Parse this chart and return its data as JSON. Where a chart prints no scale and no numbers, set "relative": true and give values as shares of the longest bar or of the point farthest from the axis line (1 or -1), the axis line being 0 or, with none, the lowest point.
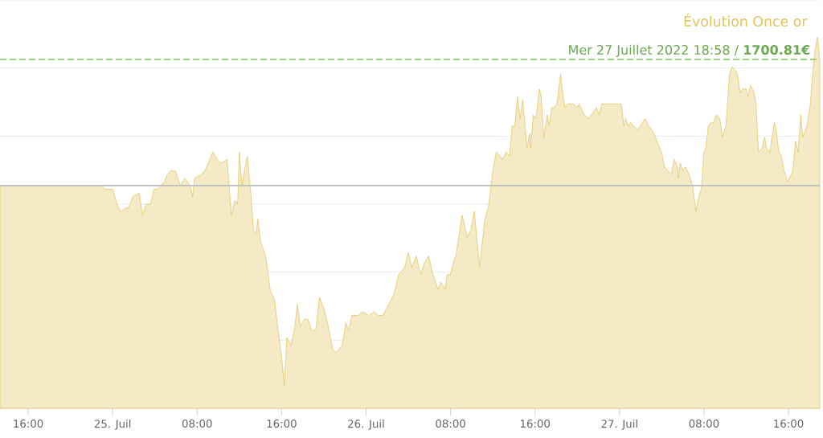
{
  "chart_data": {
    "type": "area",
    "title": "Évolution Once or",
    "relative": true,
    "grid": "y",
    "color": "#e2c35c",
    "xlim": [
      "2022-07-24T13:20",
      "2022-07-27T18:58"
    ],
    "xticks": [
      {
        "value": "2022-07-24T16:00",
        "label": "16:00"
      },
      {
        "value": "2022-07-25T00:00",
        "label": "25. Juil"
      },
      {
        "value": "2022-07-25T08:00",
        "label": "08:00"
      },
      {
        "value": "2022-07-25T16:00",
        "label": "16:00"
      },
      {
        "value": "2022-07-26T00:00",
        "label": "26. Juil"
      },
      {
        "value": "2022-07-26T08:00",
        "label": "08:00"
      },
      {
        "value": "2022-07-26T16:00",
        "label": "16:00"
      },
      {
        "value": "2022-07-27T00:00",
        "label": "27. Juil"
      },
      {
        "value": "2022-07-27T08:00",
        "label": "08:00"
      },
      {
        "value": "2022-07-27T16:00",
        "label": "16:00"
      }
    ],
    "annotations": [
      "Mer 27 Juillet 2022 18:58 / **1700.81€**"
    ],
    "ref_lines": [
      {
        "axis": "y",
        "value": 0.94,
        "color": "#8fd16f",
        "line_style": "dashed"
      },
      {
        "axis": "y",
        "value": 0.6,
        "color": "#bdbdbd"
      }
    ],
    "x": [
      "2022-07-24T13:20",
      "2022-07-24T23:00",
      "2022-07-24T23:15",
      "2022-07-25T00:00",
      "2022-07-25T00:25",
      "2022-07-25T00:45",
      "2022-07-25T01:15",
      "2022-07-25T01:30",
      "2022-07-25T01:55",
      "2022-07-25T02:30",
      "2022-07-25T02:50",
      "2022-07-25T03:10",
      "2022-07-25T03:35",
      "2022-07-25T03:55",
      "2022-07-25T04:10",
      "2022-07-25T04:30",
      "2022-07-25T04:55",
      "2022-07-25T05:10",
      "2022-07-25T05:30",
      "2022-07-25T05:55",
      "2022-07-25T06:25",
      "2022-07-25T06:50",
      "2022-07-25T07:20",
      "2022-07-25T07:35",
      "2022-07-25T07:45",
      "2022-07-25T08:25",
      "2022-07-25T08:45",
      "2022-07-25T09:30",
      "2022-07-25T09:55",
      "2022-07-25T10:15",
      "2022-07-25T10:50",
      "2022-07-25T11:15",
      "2022-07-25T11:35",
      "2022-07-25T11:50",
      "2022-07-25T12:00",
      "2022-07-25T12:15",
      "2022-07-25T12:45",
      "2022-07-25T13:05",
      "2022-07-25T13:20",
      "2022-07-25T13:35",
      "2022-07-25T13:45",
      "2022-07-25T14:00",
      "2022-07-25T14:30",
      "2022-07-25T14:55",
      "2022-07-25T15:20",
      "2022-07-25T15:40",
      "2022-07-25T16:00",
      "2022-07-25T16:15",
      "2022-07-25T16:30",
      "2022-07-25T16:55",
      "2022-07-25T17:15",
      "2022-07-25T17:30",
      "2022-07-25T17:45",
      "2022-07-25T18:10",
      "2022-07-25T18:30",
      "2022-07-25T18:50",
      "2022-07-25T19:15",
      "2022-07-25T19:35",
      "2022-07-25T20:00",
      "2022-07-25T20:25",
      "2022-07-25T20:50",
      "2022-07-25T21:10",
      "2022-07-25T21:45",
      "2022-07-25T22:05",
      "2022-07-25T22:20",
      "2022-07-25T22:40",
      "2022-07-25T23:15",
      "2022-07-25T23:40",
      "2022-07-26T00:15",
      "2022-07-26T00:45",
      "2022-07-26T01:10",
      "2022-07-26T01:35",
      "2022-07-26T02:20",
      "2022-07-26T02:40",
      "2022-07-26T03:05",
      "2022-07-26T03:40",
      "2022-07-26T04:00",
      "2022-07-26T04:20",
      "2022-07-26T04:45",
      "2022-07-26T05:10",
      "2022-07-26T05:30",
      "2022-07-26T05:55",
      "2022-07-26T06:15",
      "2022-07-26T06:35",
      "2022-07-26T06:50",
      "2022-07-26T07:05",
      "2022-07-26T07:30",
      "2022-07-26T07:40",
      "2022-07-26T08:00",
      "2022-07-26T08:20",
      "2022-07-26T08:30",
      "2022-07-26T09:05",
      "2022-07-26T09:20",
      "2022-07-26T09:35",
      "2022-07-26T09:55",
      "2022-07-26T10:15",
      "2022-07-26T10:45",
      "2022-07-26T11:15",
      "2022-07-26T11:35",
      "2022-07-26T12:00",
      "2022-07-26T12:20",
      "2022-07-26T12:40",
      "2022-07-26T12:55",
      "2022-07-26T13:15",
      "2022-07-26T13:35",
      "2022-07-26T13:50",
      "2022-07-26T14:05",
      "2022-07-26T14:20",
      "2022-07-26T14:35",
      "2022-07-26T14:50",
      "2022-07-26T15:15",
      "2022-07-26T15:30",
      "2022-07-26T15:35",
      "2022-07-26T15:50",
      "2022-07-26T16:05",
      "2022-07-26T16:25",
      "2022-07-26T16:35",
      "2022-07-26T16:50",
      "2022-07-26T17:10",
      "2022-07-26T17:20",
      "2022-07-26T17:35",
      "2022-07-26T17:50",
      "2022-07-26T18:05",
      "2022-07-26T18:25",
      "2022-07-26T18:40",
      "2022-07-26T18:50",
      "2022-07-26T19:05",
      "2022-07-26T19:20",
      "2022-07-26T19:40",
      "2022-07-26T20:00",
      "2022-07-26T20:10",
      "2022-07-26T20:40",
      "2022-07-26T21:05",
      "2022-07-26T21:35",
      "2022-07-26T21:50",
      "2022-07-26T22:05",
      "2022-07-26T22:20",
      "2022-07-26T22:40",
      "2022-07-26T23:00",
      "2022-07-27T00:10",
      "2022-07-27T00:25",
      "2022-07-27T00:35",
      "2022-07-27T00:50",
      "2022-07-27T01:05",
      "2022-07-27T01:20",
      "2022-07-27T01:45",
      "2022-07-27T02:10",
      "2022-07-27T02:25",
      "2022-07-27T02:45",
      "2022-07-27T03:05",
      "2022-07-27T03:25",
      "2022-07-27T03:40",
      "2022-07-27T04:00",
      "2022-07-27T04:15",
      "2022-07-27T04:35",
      "2022-07-27T04:55",
      "2022-07-27T05:10",
      "2022-07-27T05:30",
      "2022-07-27T05:35",
      "2022-07-27T05:45",
      "2022-07-27T06:00",
      "2022-07-27T06:15",
      "2022-07-27T06:35",
      "2022-07-27T06:55",
      "2022-07-27T07:15",
      "2022-07-27T07:30",
      "2022-07-27T07:45",
      "2022-07-27T08:00",
      "2022-07-27T08:10",
      "2022-07-27T08:25",
      "2022-07-27T08:40",
      "2022-07-27T08:55",
      "2022-07-27T09:10",
      "2022-07-27T09:30",
      "2022-07-27T09:45",
      "2022-07-27T10:05",
      "2022-07-27T10:25",
      "2022-07-27T10:40",
      "2022-07-27T11:00",
      "2022-07-27T11:10",
      "2022-07-27T11:25",
      "2022-07-27T11:40",
      "2022-07-27T12:00",
      "2022-07-27T12:10",
      "2022-07-27T12:25",
      "2022-07-27T12:45",
      "2022-07-27T12:55",
      "2022-07-27T13:10",
      "2022-07-27T13:30",
      "2022-07-27T13:45",
      "2022-07-27T13:55",
      "2022-07-27T14:15",
      "2022-07-27T14:30",
      "2022-07-27T14:40",
      "2022-07-27T14:50",
      "2022-07-27T15:05",
      "2022-07-27T15:20",
      "2022-07-27T15:35",
      "2022-07-27T15:55",
      "2022-07-27T16:15",
      "2022-07-27T16:25",
      "2022-07-27T16:40",
      "2022-07-27T16:55",
      "2022-07-27T17:10",
      "2022-07-27T17:20",
      "2022-07-27T17:45",
      "2022-07-27T18:05",
      "2022-07-27T18:15",
      "2022-07-27T18:30",
      "2022-07-27T18:45",
      "2022-07-27T18:58"
    ],
    "values": [
      0.6,
      0.6,
      0.59,
      0.59,
      0.55,
      0.53,
      0.54,
      0.54,
      0.57,
      0.58,
      0.52,
      0.55,
      0.55,
      0.59,
      0.59,
      0.6,
      0.61,
      0.63,
      0.64,
      0.64,
      0.6,
      0.62,
      0.6,
      0.57,
      0.62,
      0.63,
      0.64,
      0.69,
      0.67,
      0.66,
      0.67,
      0.52,
      0.56,
      0.55,
      0.69,
      0.6,
      0.68,
      0.58,
      0.48,
      0.47,
      0.51,
      0.45,
      0.41,
      0.32,
      0.29,
      0.21,
      0.14,
      0.06,
      0.19,
      0.17,
      0.22,
      0.28,
      0.22,
      0.24,
      0.24,
      0.21,
      0.21,
      0.3,
      0.27,
      0.22,
      0.16,
      0.15,
      0.17,
      0.23,
      0.21,
      0.25,
      0.25,
      0.26,
      0.25,
      0.26,
      0.25,
      0.25,
      0.29,
      0.31,
      0.36,
      0.38,
      0.42,
      0.38,
      0.41,
      0.36,
      0.39,
      0.41,
      0.37,
      0.34,
      0.32,
      0.34,
      0.32,
      0.36,
      0.36,
      0.4,
      0.41,
      0.52,
      0.49,
      0.46,
      0.48,
      0.53,
      0.38,
      0.51,
      0.54,
      0.64,
      0.69,
      0.68,
      0.67,
      0.69,
      0.68,
      0.76,
      0.76,
      0.84,
      0.78,
      0.83,
      0.7,
      0.74,
      0.7,
      0.79,
      0.78,
      0.86,
      0.84,
      0.73,
      0.79,
      0.76,
      0.81,
      0.81,
      0.82,
      0.9,
      0.84,
      0.81,
      0.82,
      0.82,
      0.82,
      0.81,
      0.82,
      0.79,
      0.78,
      0.8,
      0.81,
      0.79,
      0.82,
      0.82,
      0.82,
      0.82,
      0.76,
      0.78,
      0.76,
      0.77,
      0.76,
      0.75,
      0.77,
      0.78,
      0.76,
      0.75,
      0.73,
      0.71,
      0.69,
      0.65,
      0.64,
      0.63,
      0.67,
      0.65,
      0.62,
      0.66,
      0.64,
      0.65,
      0.63,
      0.6,
      0.53,
      0.57,
      0.59,
      0.69,
      0.7,
      0.76,
      0.77,
      0.77,
      0.79,
      0.78,
      0.73,
      0.76,
      0.9,
      0.92,
      0.91,
      0.9,
      0.85,
      0.86,
      0.86,
      0.84,
      0.87,
      0.85,
      0.82,
      0.69,
      0.7,
      0.73,
      0.7,
      0.69,
      0.74,
      0.77,
      0.75,
      0.69,
      0.68,
      0.64,
      0.61,
      0.63,
      0.64,
      0.72,
      0.69,
      0.79,
      0.73,
      0.76,
      0.82,
      0.89,
      0.96,
      1.0,
      0.94
    ]
  }
}
